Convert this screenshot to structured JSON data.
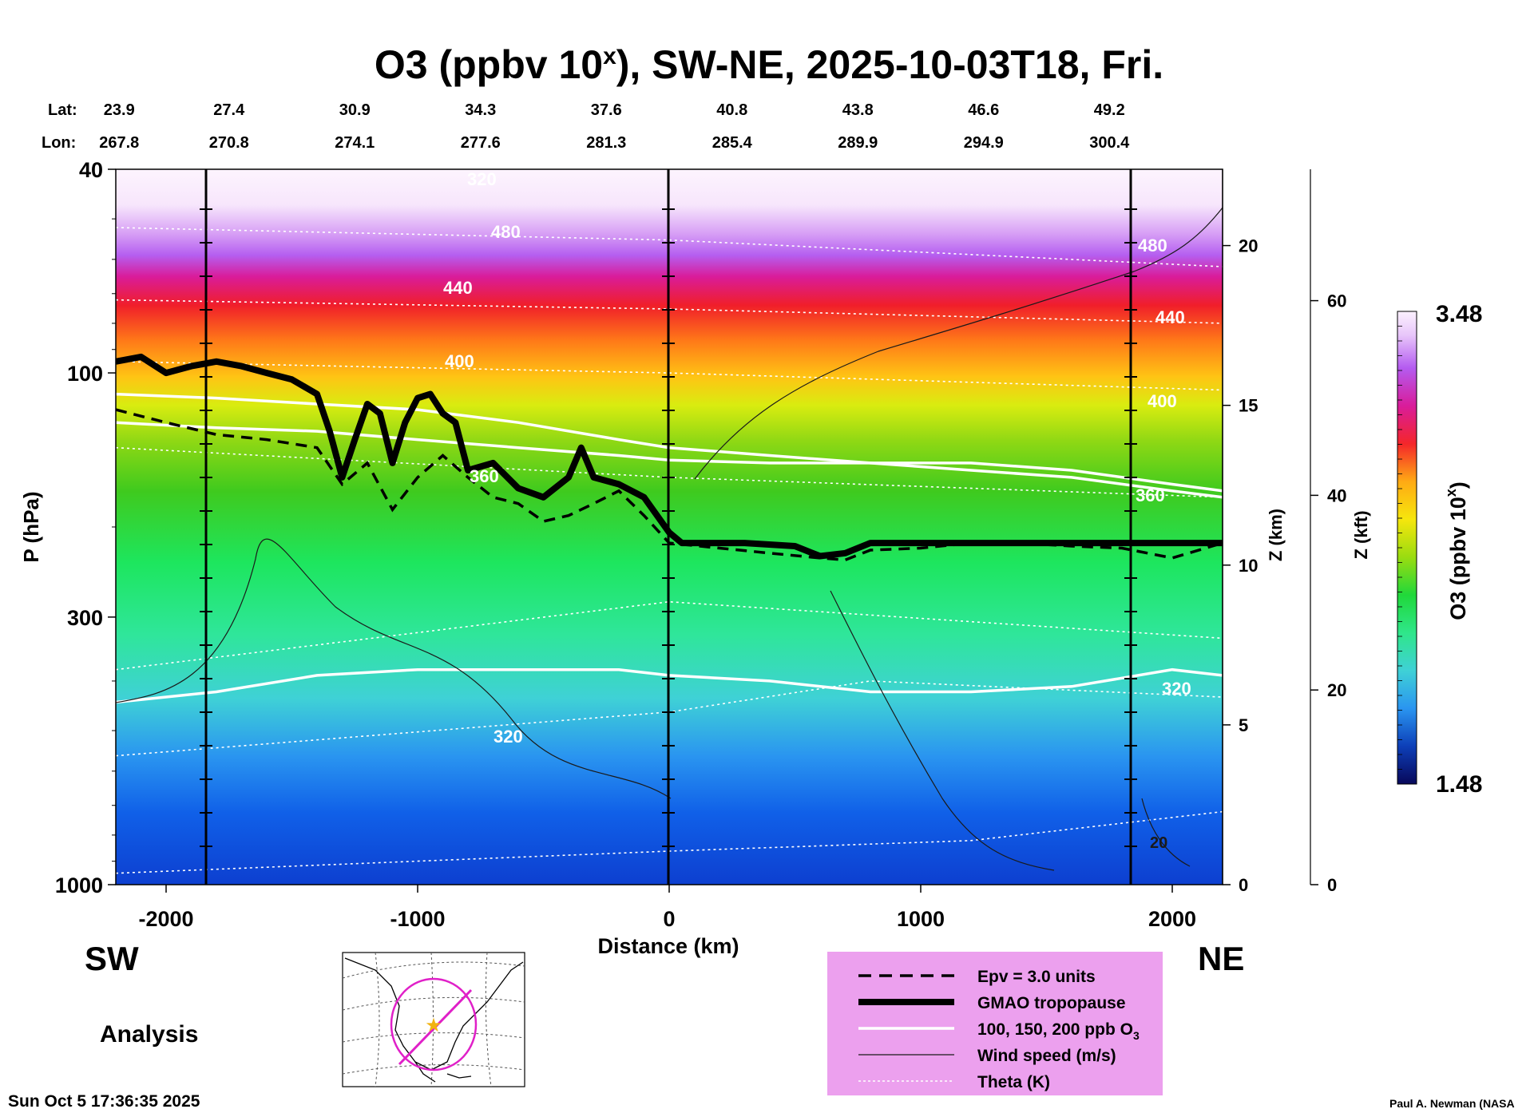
{
  "chart_data": {
    "type": "heatmap",
    "title": "O3 (ppbv 10",
    "title_sup": "x",
    "title_rest": "), SW-NE, 2025-10-03T18, Fri.",
    "lat_label": "Lat:",
    "lon_label": "Lon:",
    "lats": [
      "23.9",
      "27.4",
      "30.9",
      "34.3",
      "37.6",
      "40.8",
      "43.8",
      "46.6",
      "49.2"
    ],
    "lons": [
      "267.8",
      "270.8",
      "274.1",
      "277.6",
      "281.3",
      "285.4",
      "289.9",
      "294.9",
      "300.4"
    ],
    "latlon_x": [
      -2250,
      -1750,
      -1250,
      -750,
      -250,
      250,
      750,
      1250,
      1750
    ],
    "xlabel": "Distance (km)",
    "xlim": [
      -2200,
      2200
    ],
    "xticks": [
      -2000,
      -1000,
      0,
      1000,
      2000
    ],
    "ylabel": "P (hPa)",
    "ylim": [
      1000,
      40
    ],
    "y_log": true,
    "yticks": [
      40,
      100,
      300,
      1000
    ],
    "z_km_label": "Z (km)",
    "z_km_ticks": [
      0,
      5,
      10,
      15,
      20
    ],
    "z_kft_label": "Z (kft)",
    "z_kft_ticks": [
      0,
      20,
      40,
      60
    ],
    "colorbar_label": "O3 (ppbv 10",
    "colorbar_sup": "x",
    "colorbar_label_end": ")",
    "colorbar_min": "1.48",
    "colorbar_max": "3.48",
    "colorbar_colors": [
      "#08085a",
      "#0b2b8c",
      "#0d3fb8",
      "#0f55e3",
      "#1c74f2",
      "#2a95f0",
      "#37b5e8",
      "#3fd1d6",
      "#3fe0b0",
      "#2fe68a",
      "#1be55e",
      "#20d83a",
      "#3cc81f",
      "#6bd016",
      "#9adc10",
      "#c4e60c",
      "#e3ee0b",
      "#f6e60d",
      "#ffcc12",
      "#ffaa14",
      "#ff8216",
      "#ff5718",
      "#f4262a",
      "#e8145a",
      "#d91c9a",
      "#c43bd4",
      "#b45bf0",
      "#c585f4",
      "#d8a7f7",
      "#e8c6fa",
      "#f4e0fc",
      "#fbf1fe"
    ],
    "theta_labels": [
      "480",
      "440",
      "400",
      "360",
      "320"
    ],
    "theta_labels_right": [
      "480",
      "440",
      "400",
      "360",
      "320"
    ],
    "o3_contour_label": "320",
    "wind_label": "20",
    "top_contour_label": "320",
    "region_left": "SW",
    "region_right": "NE",
    "analysis_label": "Analysis",
    "legend": [
      {
        "name": "Epv = 3.0 units",
        "style": "dashed"
      },
      {
        "name": "GMAO tropopause",
        "style": "thick"
      },
      {
        "name": "100, 150, 200 ppb O",
        "sub": "3",
        "style": "white"
      },
      {
        "name": "Wind speed (m/s)",
        "style": "thin"
      },
      {
        "name": "Theta (K)",
        "style": "dotted"
      }
    ],
    "legend_bg": "#eca0ee",
    "tropopause": [
      [
        -2200,
        95
      ],
      [
        -2100,
        93
      ],
      [
        -2000,
        100
      ],
      [
        -1900,
        97
      ],
      [
        -1800,
        95
      ],
      [
        -1700,
        97
      ],
      [
        -1600,
        100
      ],
      [
        -1500,
        103
      ],
      [
        -1400,
        110
      ],
      [
        -1350,
        130
      ],
      [
        -1300,
        160
      ],
      [
        -1250,
        135
      ],
      [
        -1200,
        115
      ],
      [
        -1150,
        120
      ],
      [
        -1100,
        150
      ],
      [
        -1050,
        125
      ],
      [
        -1000,
        112
      ],
      [
        -950,
        110
      ],
      [
        -900,
        120
      ],
      [
        -850,
        125
      ],
      [
        -800,
        155
      ],
      [
        -700,
        150
      ],
      [
        -600,
        168
      ],
      [
        -500,
        175
      ],
      [
        -400,
        160
      ],
      [
        -350,
        140
      ],
      [
        -300,
        160
      ],
      [
        -200,
        165
      ],
      [
        -100,
        175
      ],
      [
        0,
        205
      ],
      [
        50,
        215
      ],
      [
        300,
        215
      ],
      [
        500,
        218
      ],
      [
        600,
        228
      ],
      [
        700,
        225
      ],
      [
        800,
        215
      ],
      [
        1000,
        215
      ],
      [
        1500,
        215
      ],
      [
        2200,
        215
      ]
    ],
    "epv": [
      [
        -2200,
        118
      ],
      [
        -2000,
        125
      ],
      [
        -1800,
        132
      ],
      [
        -1600,
        135
      ],
      [
        -1400,
        140
      ],
      [
        -1300,
        165
      ],
      [
        -1200,
        150
      ],
      [
        -1100,
        185
      ],
      [
        -1000,
        160
      ],
      [
        -900,
        145
      ],
      [
        -800,
        160
      ],
      [
        -700,
        175
      ],
      [
        -600,
        180
      ],
      [
        -500,
        195
      ],
      [
        -400,
        190
      ],
      [
        -300,
        180
      ],
      [
        -200,
        170
      ],
      [
        -100,
        190
      ],
      [
        0,
        215
      ],
      [
        200,
        220
      ],
      [
        400,
        225
      ],
      [
        600,
        230
      ],
      [
        700,
        232
      ],
      [
        800,
        222
      ],
      [
        1000,
        220
      ],
      [
        1200,
        215
      ],
      [
        1400,
        215
      ],
      [
        1600,
        218
      ],
      [
        1800,
        220
      ],
      [
        2000,
        230
      ],
      [
        2200,
        215
      ]
    ],
    "o3_contours": [
      [
        [
          -2200,
          110
        ],
        [
          -1800,
          112
        ],
        [
          -1400,
          115
        ],
        [
          -1000,
          118
        ],
        [
          -600,
          125
        ],
        [
          -200,
          135
        ],
        [
          0,
          140
        ],
        [
          400,
          145
        ],
        [
          800,
          150
        ],
        [
          1200,
          155
        ],
        [
          1600,
          160
        ],
        [
          2000,
          170
        ],
        [
          2200,
          175
        ]
      ],
      [
        [
          -2200,
          125
        ],
        [
          -1800,
          128
        ],
        [
          -1400,
          130
        ],
        [
          -1000,
          135
        ],
        [
          -600,
          140
        ],
        [
          -200,
          145
        ],
        [
          0,
          148
        ],
        [
          400,
          150
        ],
        [
          800,
          150
        ],
        [
          1200,
          150
        ],
        [
          1600,
          155
        ],
        [
          2000,
          165
        ],
        [
          2200,
          170
        ]
      ],
      [
        [
          -2200,
          440
        ],
        [
          -1800,
          420
        ],
        [
          -1400,
          390
        ],
        [
          -1000,
          380
        ],
        [
          -600,
          380
        ],
        [
          -200,
          380
        ],
        [
          0,
          390
        ],
        [
          400,
          400
        ],
        [
          800,
          420
        ],
        [
          1200,
          420
        ],
        [
          1600,
          410
        ],
        [
          2000,
          380
        ],
        [
          2200,
          390
        ]
      ]
    ],
    "theta_lines": [
      [
        [
          -2200,
          52
        ],
        [
          0,
          55
        ],
        [
          2200,
          62
        ]
      ],
      [
        [
          -2200,
          72
        ],
        [
          0,
          75
        ],
        [
          2200,
          80
        ]
      ],
      [
        [
          -2200,
          95
        ],
        [
          0,
          100
        ],
        [
          2200,
          108
        ]
      ],
      [
        [
          -2200,
          140
        ],
        [
          0,
          160
        ],
        [
          2200,
          175
        ]
      ],
      [
        [
          -2200,
          380
        ],
        [
          0,
          280
        ],
        [
          2200,
          330
        ]
      ],
      [
        [
          -2200,
          560
        ],
        [
          0,
          460
        ],
        [
          800,
          400
        ],
        [
          2200,
          430
        ]
      ],
      [
        [
          -2200,
          950
        ],
        [
          0,
          860
        ],
        [
          1200,
          820
        ],
        [
          2200,
          720
        ]
      ]
    ]
  },
  "footer": {
    "timestamp": "Sun Oct  5 17:36:35 2025",
    "credit": "Paul A. Newman (NASA"
  }
}
